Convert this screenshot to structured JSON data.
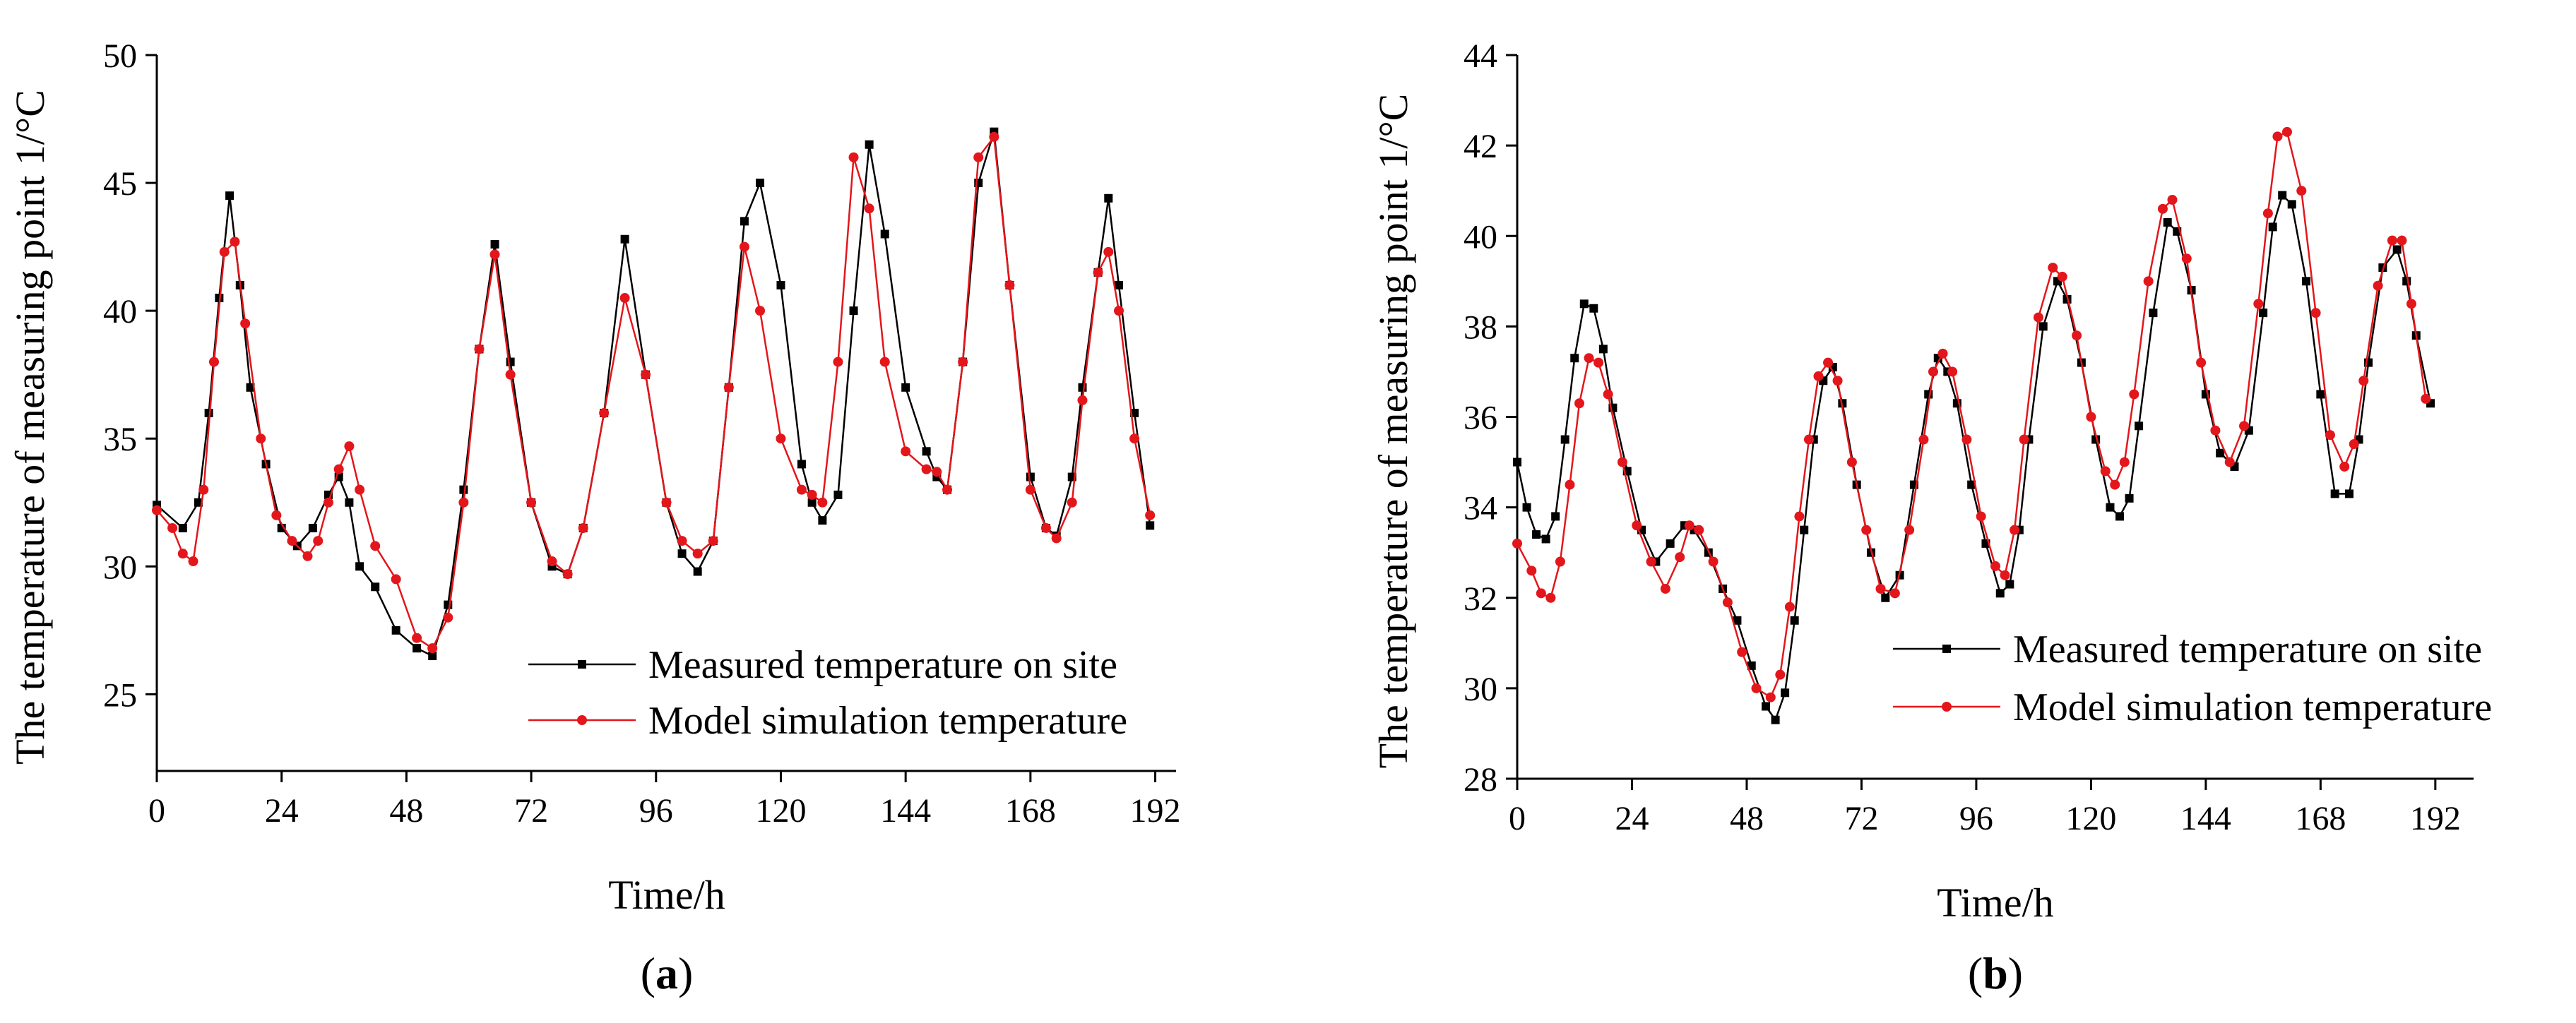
{
  "colors": {
    "measured": "#000000",
    "simulated": "#e3161b"
  },
  "chart_data": [
    {
      "type": "line",
      "panel_label": "a",
      "title": "",
      "xlabel": "Time/h",
      "ylabel": "The temperature of measuring point 1/°C",
      "xlim": [
        0,
        196
      ],
      "ylim": [
        22,
        50
      ],
      "xticks": [
        0,
        24,
        48,
        72,
        96,
        120,
        144,
        168,
        192
      ],
      "yticks": [
        25,
        30,
        35,
        40,
        45,
        50
      ],
      "legend_position": "bottom-right",
      "series": [
        {
          "name": "Measured temperature on site",
          "marker": "square",
          "color_key": "measured",
          "x": [
            0,
            5,
            8,
            10,
            12,
            14,
            16,
            18,
            21,
            24,
            27,
            30,
            33,
            35,
            37,
            39,
            42,
            46,
            50,
            53,
            56,
            59,
            62,
            65,
            68,
            72,
            76,
            79,
            82,
            86,
            90,
            94,
            98,
            101,
            104,
            107,
            110,
            113,
            116,
            120,
            124,
            126,
            128,
            131,
            134,
            137,
            140,
            144,
            148,
            150,
            152,
            155,
            158,
            161,
            164,
            168,
            171,
            173,
            176,
            178,
            181,
            183,
            185,
            188,
            191
          ],
          "y": [
            32.4,
            31.5,
            32.5,
            36,
            40.5,
            44.5,
            41,
            37,
            34,
            31.5,
            30.8,
            31.5,
            32.8,
            33.5,
            32.5,
            30,
            29.2,
            27.5,
            26.8,
            26.5,
            28.5,
            33,
            38.5,
            42.6,
            38,
            32.5,
            30,
            29.7,
            31.5,
            36,
            42.8,
            37.5,
            32.5,
            30.5,
            29.8,
            31,
            37,
            43.5,
            45,
            41,
            34,
            32.5,
            31.8,
            32.8,
            40,
            46.5,
            43,
            37,
            34.5,
            33.5,
            33,
            38,
            45,
            47,
            41,
            33.5,
            31.5,
            31.2,
            33.5,
            37,
            41.5,
            44.4,
            41,
            36,
            31.6
          ]
        },
        {
          "name": "Model simulation temperature",
          "marker": "circle",
          "color_key": "simulated",
          "x": [
            0,
            3,
            5,
            7,
            9,
            11,
            13,
            15,
            17,
            20,
            23,
            26,
            29,
            31,
            33,
            35,
            37,
            39,
            42,
            46,
            50,
            53,
            56,
            59,
            62,
            65,
            68,
            72,
            76,
            79,
            82,
            86,
            90,
            94,
            98,
            101,
            104,
            107,
            110,
            113,
            116,
            120,
            124,
            126,
            128,
            131,
            134,
            137,
            140,
            144,
            148,
            150,
            152,
            155,
            158,
            161,
            164,
            168,
            171,
            173,
            176,
            178,
            181,
            183,
            185,
            188,
            191
          ],
          "y": [
            32.2,
            31.5,
            30.5,
            30.2,
            33,
            38,
            42.3,
            42.7,
            39.5,
            35,
            32,
            31,
            30.4,
            31,
            32.5,
            33.8,
            34.7,
            33,
            30.8,
            29.5,
            27.2,
            26.8,
            28,
            32.5,
            38.5,
            42.2,
            37.5,
            32.5,
            30.2,
            29.7,
            31.5,
            36,
            40.5,
            37.5,
            32.5,
            31,
            30.5,
            31,
            37,
            42.5,
            40,
            35,
            33,
            32.8,
            32.5,
            38,
            46,
            44,
            38,
            34.5,
            33.8,
            33.7,
            33,
            38,
            46,
            46.8,
            41,
            33,
            31.5,
            31.1,
            32.5,
            36.5,
            41.5,
            42.3,
            40,
            35,
            32
          ]
        }
      ]
    },
    {
      "type": "line",
      "panel_label": "b",
      "title": "",
      "xlabel": "Time/h",
      "ylabel": "The temperature of measuring point 1/°C",
      "xlim": [
        0,
        200
      ],
      "ylim": [
        28,
        44
      ],
      "xticks": [
        0,
        24,
        48,
        72,
        96,
        120,
        144,
        168,
        192
      ],
      "yticks": [
        28,
        30,
        32,
        34,
        36,
        38,
        40,
        42,
        44
      ],
      "legend_position": "bottom-right",
      "series": [
        {
          "name": "Measured temperature on site",
          "marker": "square",
          "color_key": "measured",
          "x": [
            0,
            2,
            4,
            6,
            8,
            10,
            12,
            14,
            16,
            18,
            20,
            23,
            26,
            29,
            32,
            35,
            37,
            40,
            43,
            46,
            49,
            52,
            54,
            56,
            58,
            60,
            62,
            64,
            66,
            68,
            71,
            74,
            77,
            80,
            83,
            86,
            88,
            90,
            92,
            95,
            98,
            101,
            103,
            105,
            107,
            110,
            113,
            115,
            118,
            121,
            124,
            126,
            128,
            130,
            133,
            136,
            138,
            141,
            144,
            147,
            150,
            153,
            156,
            158,
            160,
            162,
            165,
            168,
            171,
            174,
            176,
            178,
            181,
            184,
            186,
            188,
            191
          ],
          "y": [
            35,
            34,
            33.4,
            33.3,
            33.8,
            35.5,
            37.3,
            38.5,
            38.4,
            37.5,
            36.2,
            34.8,
            33.5,
            32.8,
            33.2,
            33.6,
            33.5,
            33,
            32.2,
            31.5,
            30.5,
            29.6,
            29.3,
            29.9,
            31.5,
            33.5,
            35.5,
            36.8,
            37.1,
            36.3,
            34.5,
            33,
            32,
            32.5,
            34.5,
            36.5,
            37.3,
            37,
            36.3,
            34.5,
            33.2,
            32.1,
            32.3,
            33.5,
            35.5,
            38,
            39,
            38.6,
            37.2,
            35.5,
            34,
            33.8,
            34.2,
            35.8,
            38.3,
            40.3,
            40.1,
            38.8,
            36.5,
            35.2,
            34.9,
            35.7,
            38.3,
            40.2,
            40.9,
            40.7,
            39,
            36.5,
            34.3,
            34.3,
            35.5,
            37.2,
            39.3,
            39.7,
            39,
            37.8,
            36.3
          ]
        },
        {
          "name": "Model simulation temperature",
          "marker": "circle",
          "color_key": "simulated",
          "x": [
            0,
            3,
            5,
            7,
            9,
            11,
            13,
            15,
            17,
            19,
            22,
            25,
            28,
            31,
            34,
            36,
            38,
            41,
            44,
            47,
            50,
            53,
            55,
            57,
            59,
            61,
            63,
            65,
            67,
            70,
            73,
            76,
            79,
            82,
            85,
            87,
            89,
            91,
            94,
            97,
            100,
            102,
            104,
            106,
            109,
            112,
            114,
            117,
            120,
            123,
            125,
            127,
            129,
            132,
            135,
            137,
            140,
            143,
            146,
            149,
            152,
            155,
            157,
            159,
            161,
            164,
            167,
            170,
            173,
            175,
            177,
            180,
            183,
            185,
            187,
            190
          ],
          "y": [
            33.2,
            32.6,
            32.1,
            32,
            32.8,
            34.5,
            36.3,
            37.3,
            37.2,
            36.5,
            35,
            33.6,
            32.8,
            32.2,
            32.9,
            33.6,
            33.5,
            32.8,
            31.9,
            30.8,
            30,
            29.8,
            30.3,
            31.8,
            33.8,
            35.5,
            36.9,
            37.2,
            36.8,
            35,
            33.5,
            32.2,
            32.1,
            33.5,
            35.5,
            37,
            37.4,
            37,
            35.5,
            33.8,
            32.7,
            32.5,
            33.5,
            35.5,
            38.2,
            39.3,
            39.1,
            37.8,
            36,
            34.8,
            34.5,
            35,
            36.5,
            39,
            40.6,
            40.8,
            39.5,
            37.2,
            35.7,
            35,
            35.8,
            38.5,
            40.5,
            42.2,
            42.3,
            41,
            38.3,
            35.6,
            34.9,
            35.4,
            36.8,
            38.9,
            39.9,
            39.9,
            38.5,
            36.4
          ]
        }
      ]
    }
  ]
}
